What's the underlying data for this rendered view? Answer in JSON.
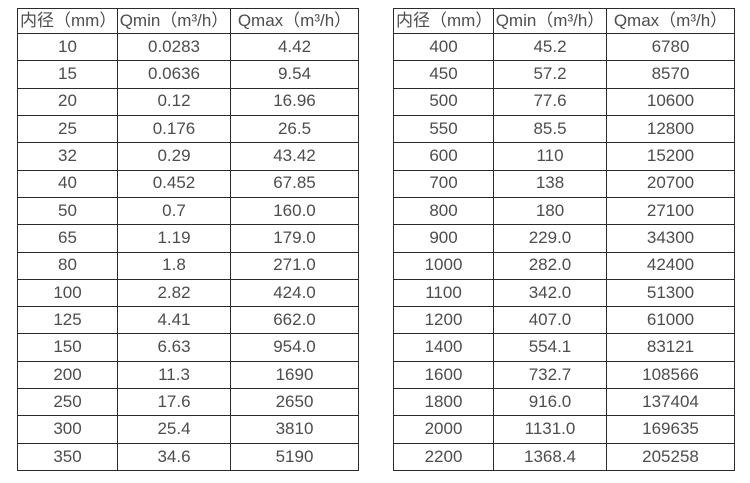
{
  "page": {
    "background": "#ffffff",
    "border_color": "#2b2b2b",
    "text_color": "#4d4d4d"
  },
  "tables": [
    {
      "name": "flow-table-small-diameters",
      "headers": [
        "内径（mm）",
        "Qmin（m³/h）",
        "Qmax（m³/h）"
      ],
      "rows": [
        [
          "10",
          "0.0283",
          "4.42"
        ],
        [
          "15",
          "0.0636",
          "9.54"
        ],
        [
          "20",
          "0.12",
          "16.96"
        ],
        [
          "25",
          "0.176",
          "26.5"
        ],
        [
          "32",
          "0.29",
          "43.42"
        ],
        [
          "40",
          "0.452",
          "67.85"
        ],
        [
          "50",
          "0.7",
          "160.0"
        ],
        [
          "65",
          "1.19",
          "179.0"
        ],
        [
          "80",
          "1.8",
          "271.0"
        ],
        [
          "100",
          "2.82",
          "424.0"
        ],
        [
          "125",
          "4.41",
          "662.0"
        ],
        [
          "150",
          "6.63",
          "954.0"
        ],
        [
          "200",
          "11.3",
          "1690"
        ],
        [
          "250",
          "17.6",
          "2650"
        ],
        [
          "300",
          "25.4",
          "3810"
        ],
        [
          "350",
          "34.6",
          "5190"
        ]
      ]
    },
    {
      "name": "flow-table-large-diameters",
      "headers": [
        "内径（mm）",
        "Qmin（m³/h）",
        "Qmax（m³/h）"
      ],
      "rows": [
        [
          "400",
          "45.2",
          "6780"
        ],
        [
          "450",
          "57.2",
          "8570"
        ],
        [
          "500",
          "77.6",
          "10600"
        ],
        [
          "550",
          "85.5",
          "12800"
        ],
        [
          "600",
          "110",
          "15200"
        ],
        [
          "700",
          "138",
          "20700"
        ],
        [
          "800",
          "180",
          "27100"
        ],
        [
          "900",
          "229.0",
          "34300"
        ],
        [
          "1000",
          "282.0",
          "42400"
        ],
        [
          "1100",
          "342.0",
          "51300"
        ],
        [
          "1200",
          "407.0",
          "61000"
        ],
        [
          "1400",
          "554.1",
          "83121"
        ],
        [
          "1600",
          "732.7",
          "108566"
        ],
        [
          "1800",
          "916.0",
          "137404"
        ],
        [
          "2000",
          "1131.0",
          "169635"
        ],
        [
          "2200",
          "1368.4",
          "205258"
        ]
      ]
    }
  ]
}
